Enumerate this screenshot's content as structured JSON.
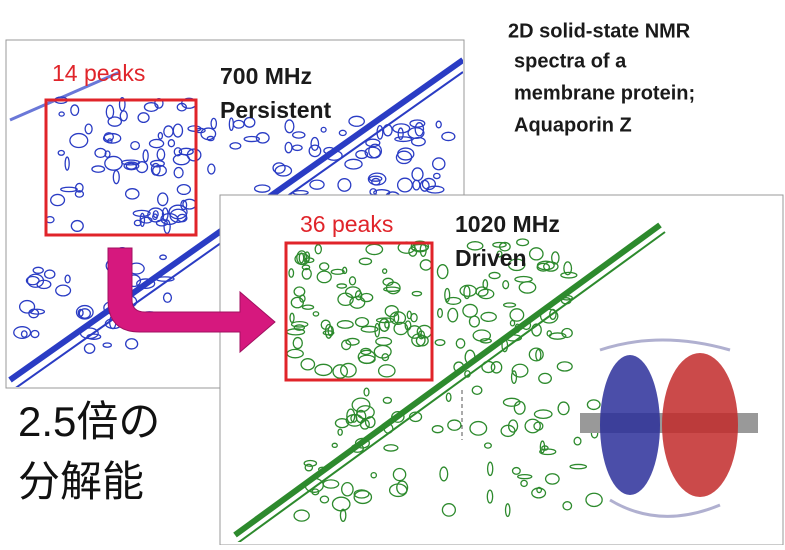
{
  "title_lines": [
    "2D solid-state NMR",
    "spectra of  a",
    "membrane protein;",
    "Aquaporin Z"
  ],
  "spectrum_1": {
    "peaks": "14 peaks",
    "field": "700 MHz",
    "magnet": "Persistent"
  },
  "spectrum_2": {
    "peaks": "36 peaks",
    "field": "1020 MHz",
    "magnet": "Driven"
  },
  "caption_lines": [
    "2.5倍の",
    "分解能"
  ]
}
